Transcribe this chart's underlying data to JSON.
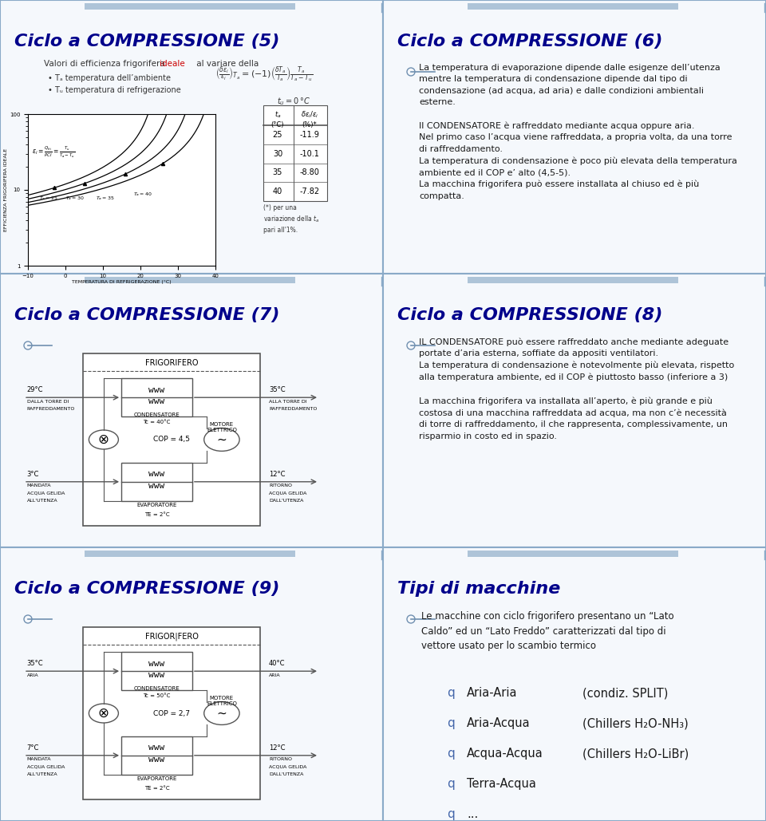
{
  "bg_color": "#e8eef5",
  "grid_color": "#c5d5e5",
  "border_color": "#8aaac8",
  "title_color": "#00008B",
  "text_color": "#1a1a1a",
  "panel_bg": "#f5f8fc",
  "header_bar_color": "#aec4d8",
  "tipi_title_color": "#00008B",
  "panel_titles": [
    "Ciclo a COMPRESSIONE (5)",
    "Ciclo a COMPRESSIONE (6)",
    "Ciclo a COMPRESSIONE (7)",
    "Ciclo a COMPRESSIONE (8)",
    "Ciclo a COMPRESSIONE (9)",
    "Tipi di macchine"
  ],
  "text6": "La temperatura di evaporazione dipende dalle esigenze dell’utenza\nmentre la temperatura di condensazione dipende dal tipo di\ncondensazione (ad acqua, ad aria) e dalle condizioni ambientali\nesterne.\n\nIl CONDENSATORE è raffreddato mediante acqua oppure aria.\nNel primo caso l’acqua viene raffreddata, a propria volta, da una torre\ndi raffreddamento.\nLa temperatura di condensazione è poco più elevata della temperatura\nambiente ed il COP e’ alto (4,5-5).\nLa macchina frigorifera può essere installata al chiuso ed è più\ncompatta.",
  "text8": "IL CONDENSATORE può essere raffreddato anche mediante adeguate\nportate d’aria esterna, soffiate da appositi ventilatori.\nLa temperatura di condensazione è notevolmente più elevata, rispetto\nalla temperatura ambiente, ed il COP è piuttosto basso (inferiore a 3)\n\nLa macchina frigorifera va installata all’aperto, è più grande e più\ncostosa di una macchina raffreddata ad acqua, ma non c’è necessità\ndi torre di raffreddamento, il che rappresenta, complessivamente, un\nrisparmio in costo ed in spazio.",
  "tipi_intro": "Le macchine con ciclo frigorifero presentano un “Lato\nCaldo” ed un “Lato Freddo” caratterizzati dal tipo di\nvettore usato per lo scambio termico",
  "tipi_items": [
    [
      "Aria-Aria",
      "(condiz. SPLIT)"
    ],
    [
      "Aria-Acqua",
      "(Chillers H₂O-NH₃)"
    ],
    [
      "Acqua-Acqua",
      "(Chillers H₂O-LiBr)"
    ],
    [
      "Terra-Acqua",
      ""
    ],
    [
      "...",
      ""
    ]
  ],
  "table_rows": [
    [
      "25",
      "-11.9"
    ],
    [
      "30",
      "-10.1"
    ],
    [
      "35",
      "-8.80"
    ],
    [
      "40",
      "-7.82"
    ]
  ],
  "diagram7": {
    "title": "FRIGORIFERO",
    "cond_label": "CONDENSATORE",
    "cond_temp": "Tc = 40°C",
    "evap_label": "EVAPORATORE",
    "evap_temp": "TE = 2°C",
    "cop": "COP = 4,5",
    "motor_label": [
      "MOTORE",
      "ELETTRICO"
    ],
    "left_top_temp": "29°C",
    "left_top_label": [
      "DALLA TORRE DI",
      "RAFFREDDAMENTO"
    ],
    "right_top_temp": "35°C",
    "right_top_label": [
      "ALLA TORRE DI",
      "RAFFREDDAMENTO"
    ],
    "left_bot_temp": "3°C",
    "left_bot_label": [
      "MANDATA",
      "ACQUA GELIDA",
      "ALL'UTENZA"
    ],
    "right_bot_temp": "12°C",
    "right_bot_label": [
      "RITORNO",
      "ACQUA GELIDA",
      "DALL'UTENZA"
    ]
  },
  "diagram9": {
    "title": "FRIGOR|FERO",
    "cond_label": "CONDENSATORE",
    "cond_temp": "Tc = 50°C",
    "evap_label": "EVAPORATORE",
    "evap_temp": "TE = 2°C",
    "cop": "COP = 2,7",
    "motor_label": [
      "MOTORE",
      "ELETTRICO"
    ],
    "left_top_temp": "35°C",
    "left_top_label": [
      "ARIA"
    ],
    "right_top_temp": "40°C",
    "right_top_label": [
      "ARIA"
    ],
    "left_bot_temp": "7°C",
    "left_bot_label": [
      "MANDATA",
      "ACQUA GELIDA",
      "ALL'UTENZA"
    ],
    "right_bot_temp": "12°C",
    "right_bot_label": [
      "RITORNO",
      "ACQUA GELIDA",
      "DALL'UTENZA"
    ]
  }
}
